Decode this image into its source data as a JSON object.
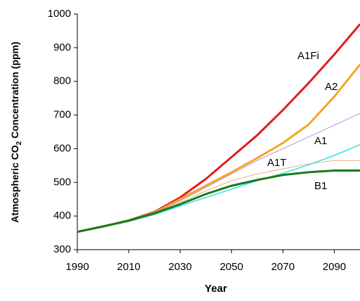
{
  "chart_data": {
    "type": "line",
    "x_label": "Year",
    "y_label": {
      "prefix": "Atmospheric CO",
      "sub": "2",
      "suffix": " Concentration (ppm)"
    },
    "x": [
      1990,
      2000,
      2010,
      2020,
      2030,
      2040,
      2050,
      2060,
      2070,
      2080,
      2090,
      2100
    ],
    "series": [
      {
        "name": "A1Fi",
        "color": "#e31a1c",
        "width": 3,
        "values": [
          353,
          369,
          387,
          412,
          455,
          510,
          575,
          640,
          715,
          795,
          880,
          970
        ]
      },
      {
        "name": "A2",
        "color": "#f5a623",
        "width": 3,
        "values": [
          353,
          369,
          386,
          410,
          450,
          490,
          530,
          572,
          617,
          672,
          755,
          850
        ]
      },
      {
        "name": "A1",
        "color": "#b38fe0",
        "width": 1,
        "values": [
          353,
          369,
          386,
          408,
          445,
          485,
          525,
          565,
          600,
          635,
          670,
          705
        ]
      },
      {
        "name": "A1T",
        "color": "#e8b07a",
        "width": 1,
        "values": [
          353,
          369,
          386,
          407,
          440,
          475,
          505,
          525,
          540,
          555,
          565,
          565
        ]
      },
      {
        "color": "#33e0e8",
        "width": 1.5,
        "values": [
          353,
          368,
          384,
          404,
          430,
          455,
          480,
          505,
          527,
          552,
          580,
          612
        ]
      },
      {
        "name": "B1",
        "color": "#1a7a1a",
        "width": 3,
        "values": [
          353,
          369,
          386,
          408,
          435,
          465,
          490,
          507,
          522,
          530,
          535,
          535
        ]
      }
    ],
    "xlim": [
      1990,
      2100
    ],
    "xticks": [
      1990,
      2010,
      2030,
      2050,
      2070,
      2090
    ],
    "ylim": [
      300,
      1000
    ],
    "yticks": [
      300,
      400,
      500,
      600,
      700,
      800,
      900,
      1000
    ],
    "grid": false
  }
}
